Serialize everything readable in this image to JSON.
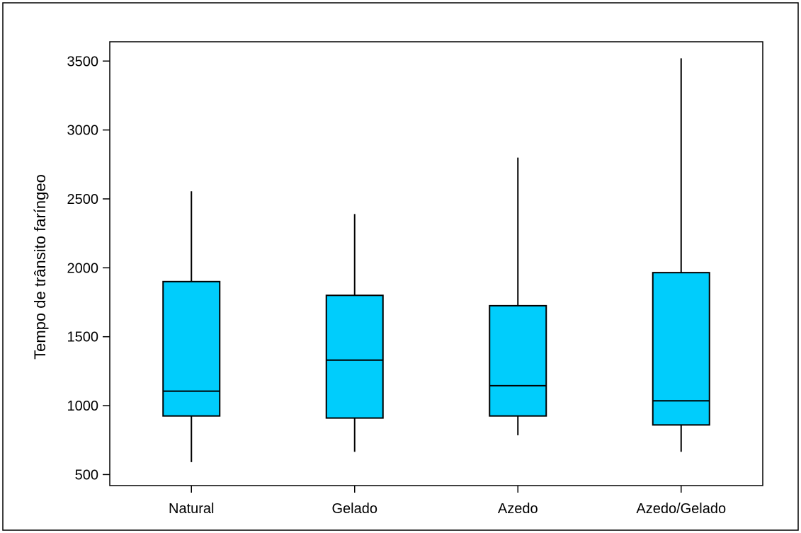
{
  "chart_data": {
    "type": "boxplot",
    "title": "",
    "xlabel": "",
    "ylabel": "Tempo de trânsito faríngeo",
    "ylim": [
      420,
      3640
    ],
    "yticks": [
      500,
      1000,
      1500,
      2000,
      2500,
      3000,
      3500
    ],
    "categories": [
      "Natural",
      "Gelado",
      "Azedo",
      "Azedo/Gelado"
    ],
    "boxes": [
      {
        "category": "Natural",
        "min": 590,
        "q1": 925,
        "median": 1105,
        "q3": 1900,
        "max": 2555
      },
      {
        "category": "Gelado",
        "min": 665,
        "q1": 910,
        "median": 1330,
        "q3": 1800,
        "max": 2390
      },
      {
        "category": "Azedo",
        "min": 785,
        "q1": 925,
        "median": 1145,
        "q3": 1725,
        "max": 2800
      },
      {
        "category": "Azedo/Gelado",
        "min": 665,
        "q1": 860,
        "median": 1035,
        "q3": 1965,
        "max": 3520
      }
    ],
    "grid": false,
    "colors": {
      "box_fill": "#00cdfc",
      "line": "#000000",
      "background": "#ffffff"
    }
  }
}
